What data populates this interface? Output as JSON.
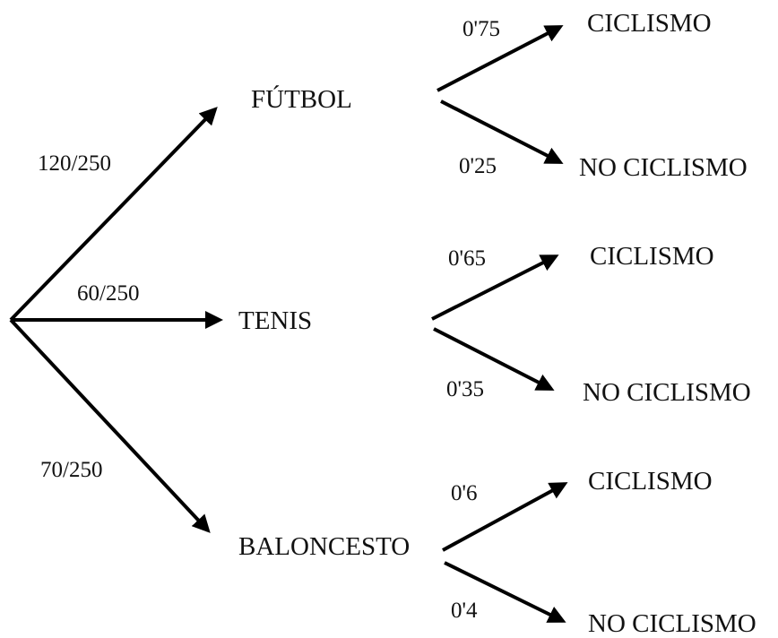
{
  "first_level": {
    "nodes": [
      "FÚTBOL",
      "TENIS",
      "BALONCESTO"
    ],
    "probabilities": [
      "120/250",
      "60/250",
      "70/250"
    ]
  },
  "second_level": {
    "futbol": {
      "outcomes": [
        "CICLISMO",
        "NO CICLISMO"
      ],
      "probabilities": [
        "0'75",
        "0'25"
      ]
    },
    "tenis": {
      "outcomes": [
        "CICLISMO",
        "NO CICLISMO"
      ],
      "probabilities": [
        "0'65",
        "0'35"
      ]
    },
    "baloncesto": {
      "outcomes": [
        "CICLISMO",
        "NO CICLISMO"
      ],
      "probabilities": [
        "0'6",
        "0'4"
      ]
    }
  }
}
